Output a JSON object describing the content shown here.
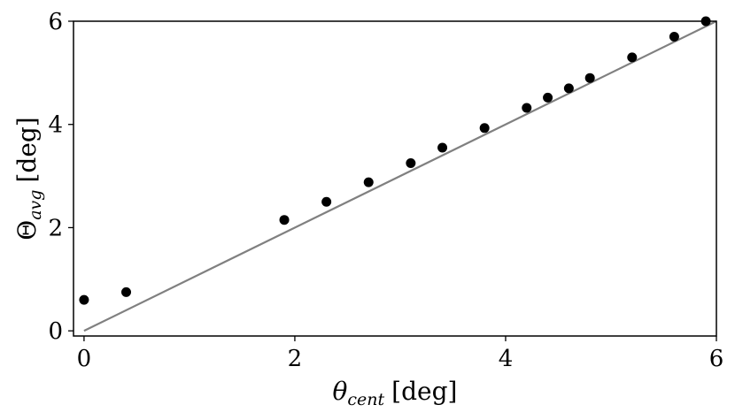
{
  "chart_data": {
    "type": "scatter",
    "xlabel": {
      "symbol": "θ",
      "subscript": "cent",
      "unit": "[deg]"
    },
    "ylabel": {
      "symbol": "Θ",
      "subscript": "avg",
      "unit": "[deg]"
    },
    "xlim": [
      -0.1,
      6
    ],
    "ylim": [
      -0.1,
      6
    ],
    "xticks": [
      "0",
      "2",
      "4",
      "6"
    ],
    "yticks": [
      "0",
      "2",
      "4",
      "6"
    ],
    "xtick_values": [
      0,
      2,
      4,
      6
    ],
    "ytick_values": [
      0,
      2,
      4,
      6
    ],
    "grid": false,
    "points": {
      "x": [
        0.0,
        0.4,
        1.9,
        2.3,
        2.7,
        3.1,
        3.4,
        3.8,
        4.2,
        4.4,
        4.6,
        4.8,
        5.2,
        5.6,
        5.9
      ],
      "y": [
        0.6,
        0.75,
        2.15,
        2.5,
        2.88,
        3.25,
        3.55,
        3.93,
        4.32,
        4.52,
        4.7,
        4.9,
        5.3,
        5.7,
        6.0
      ],
      "color": "#000000"
    },
    "reference_line": {
      "x": [
        0,
        6
      ],
      "y": [
        0,
        6
      ],
      "color": "#808080"
    }
  }
}
